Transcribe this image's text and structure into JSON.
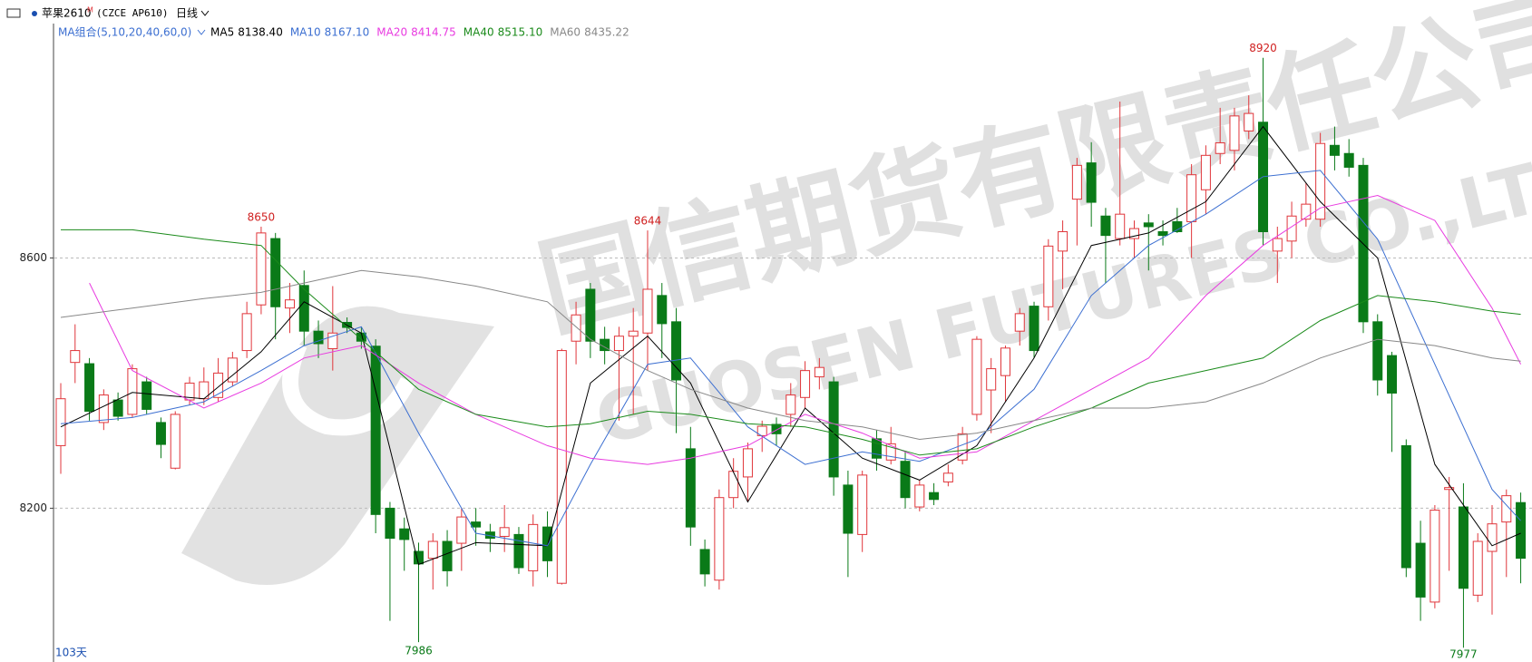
{
  "header": {
    "name": "苹果2610",
    "mark": "M",
    "code": "(CZCE AP610)",
    "period": "日线"
  },
  "legend_title": "MA组合(5,10,20,40,60,0)",
  "bar_count_label": "103天",
  "watermark": {
    "cn": "国信期货有限责任公司",
    "en": "GUOSEN FUTURES CO.,LTD."
  },
  "chart_data": {
    "type": "candlestick",
    "up_color": "#e0363b",
    "down_color": "#0a7a18",
    "ylim": [
      7960,
      8950
    ],
    "yticks": [
      8200,
      8600
    ],
    "grid": true,
    "open": [
      8300,
      8433,
      8431,
      8337,
      8373,
      8350,
      8402,
      8337,
      8264,
      8373,
      8375,
      8377,
      8402,
      8452,
      8525,
      8631,
      8520,
      8556,
      8483,
      8455,
      8497,
      8480,
      8459,
      8200,
      8167,
      8131,
      8120,
      8147,
      8144,
      8178,
      8162,
      8155,
      8158,
      8100,
      8170,
      8080,
      8467,
      8550,
      8470,
      8452,
      8475,
      8480,
      8540,
      8498,
      8295,
      8134,
      8085,
      8217,
      8250,
      8316,
      8334,
      8350,
      8377,
      8410,
      8402,
      8237,
      8158,
      8311,
      8277,
      8275,
      8202,
      8225,
      8242,
      8277,
      8350,
      8389,
      8412,
      8483,
      8523,
      8522,
      8611,
      8694,
      8752,
      8667,
      8631,
      8631,
      8656,
      8642,
      8658,
      8658,
      8709,
      8767,
      8772,
      8803,
      8817,
      8611,
      8627,
      8662,
      8662,
      8780,
      8767,
      8748,
      8498,
      8444,
      8300,
      8144,
      8050,
      8230,
      8202,
      8061,
      8131,
      8178,
      8209
    ],
    "high": [
      8400,
      8494,
      8440,
      8390,
      8385,
      8430,
      8410,
      8345,
      8355,
      8410,
      8425,
      8440,
      8450,
      8530,
      8650,
      8640,
      8560,
      8580,
      8500,
      8555,
      8505,
      8490,
      8470,
      8210,
      8185,
      8145,
      8160,
      8165,
      8200,
      8200,
      8175,
      8205,
      8170,
      8190,
      8195,
      8455,
      8530,
      8560,
      8490,
      8490,
      8520,
      8644,
      8560,
      8520,
      8330,
      8150,
      8230,
      8280,
      8305,
      8340,
      8345,
      8400,
      8435,
      8440,
      8410,
      8260,
      8260,
      8325,
      8330,
      8290,
      8245,
      8240,
      8270,
      8330,
      8475,
      8440,
      8460,
      8520,
      8530,
      8630,
      8660,
      8760,
      8785,
      8680,
      8850,
      8660,
      8670,
      8660,
      8680,
      8750,
      8780,
      8840,
      8840,
      8860,
      8920,
      8650,
      8690,
      8720,
      8800,
      8810,
      8790,
      8760,
      8510,
      8450,
      8310,
      8180,
      8205,
      8250,
      8240,
      8160,
      8205,
      8230,
      8225
    ],
    "low": [
      8255,
      8400,
      8340,
      8325,
      8340,
      8345,
      8350,
      8280,
      8262,
      8365,
      8365,
      8370,
      8395,
      8440,
      8510,
      8470,
      8480,
      8460,
      8440,
      8420,
      8480,
      8455,
      8160,
      8020,
      8100,
      7986,
      8070,
      8075,
      8100,
      8140,
      8130,
      8130,
      8095,
      8075,
      8090,
      8078,
      8430,
      8440,
      8430,
      8340,
      8350,
      8420,
      8440,
      8320,
      8140,
      8075,
      8070,
      8200,
      8210,
      8290,
      8300,
      8330,
      8360,
      8390,
      8220,
      8090,
      8130,
      8260,
      8270,
      8200,
      8195,
      8205,
      8235,
      8270,
      8340,
      8320,
      8370,
      8460,
      8440,
      8500,
      8550,
      8620,
      8650,
      8560,
      8620,
      8600,
      8580,
      8620,
      8640,
      8600,
      8670,
      8750,
      8740,
      8790,
      8620,
      8560,
      8600,
      8650,
      8650,
      8740,
      8730,
      8480,
      8380,
      8290,
      8090,
      8020,
      8040,
      8100,
      7977,
      8050,
      8030,
      8090,
      8080
    ],
    "close": [
      8375,
      8452,
      8355,
      8381,
      8347,
      8423,
      8358,
      8302,
      8350,
      8400,
      8402,
      8416,
      8440,
      8511,
      8640,
      8522,
      8533,
      8483,
      8463,
      8480,
      8489,
      8467,
      8190,
      8152,
      8150,
      8111,
      8147,
      8100,
      8186,
      8170,
      8152,
      8169,
      8105,
      8174,
      8116,
      8452,
      8509,
      8467,
      8452,
      8475,
      8483,
      8550,
      8495,
      8405,
      8170,
      8095,
      8217,
      8259,
      8295,
      8331,
      8319,
      8381,
      8420,
      8425,
      8250,
      8160,
      8253,
      8280,
      8303,
      8217,
      8237,
      8214,
      8256,
      8319,
      8470,
      8423,
      8456,
      8511,
      8452,
      8619,
      8642,
      8748,
      8689,
      8636,
      8670,
      8647,
      8650,
      8636,
      8642,
      8733,
      8764,
      8784,
      8827,
      8831,
      8642,
      8631,
      8667,
      8686,
      8783,
      8764,
      8745,
      8498,
      8405,
      8384,
      8105,
      8058,
      8197,
      8233,
      8072,
      8147,
      8175,
      8220,
      8120
    ],
    "labeled_highs": [
      14,
      41,
      84
    ],
    "labeled_lows": [
      25,
      98
    ],
    "series": [
      {
        "name": "MA5",
        "legend_value": "8138.40",
        "color": "#000000",
        "x": [
          0,
          5,
          10,
          14,
          17,
          21,
          25,
          29,
          34,
          37,
          41,
          44,
          48,
          52,
          56,
          60,
          64,
          68,
          72,
          76,
          80,
          84,
          88,
          92,
          96,
          100,
          102
        ],
        "values": [
          8330,
          8385,
          8375,
          8450,
          8530,
          8480,
          8110,
          8145,
          8140,
          8400,
          8475,
          8400,
          8210,
          8360,
          8280,
          8245,
          8300,
          8440,
          8620,
          8640,
          8690,
          8810,
          8690,
          8600,
          8270,
          8140,
          8160
        ]
      },
      {
        "name": "MA10",
        "legend_value": "8167.10",
        "color": "#3c6fd1",
        "x": [
          0,
          5,
          10,
          14,
          17,
          21,
          25,
          29,
          34,
          37,
          41,
          44,
          48,
          52,
          56,
          60,
          64,
          68,
          72,
          76,
          80,
          84,
          88,
          92,
          96,
          100,
          102
        ],
        "values": [
          8335,
          8345,
          8370,
          8420,
          8460,
          8490,
          8320,
          8160,
          8140,
          8270,
          8430,
          8440,
          8330,
          8270,
          8290,
          8275,
          8310,
          8390,
          8540,
          8620,
          8670,
          8730,
          8740,
          8630,
          8430,
          8230,
          8180
        ]
      },
      {
        "name": "MA20",
        "legend_value": "8414.75",
        "color": "#e83be0",
        "x": [
          2,
          5,
          10,
          14,
          17,
          21,
          25,
          29,
          34,
          37,
          41,
          44,
          48,
          52,
          56,
          60,
          64,
          68,
          72,
          76,
          80,
          84,
          88,
          92,
          96,
          100,
          102
        ],
        "values": [
          8560,
          8420,
          8360,
          8400,
          8440,
          8460,
          8400,
          8350,
          8300,
          8280,
          8270,
          8280,
          8300,
          8350,
          8320,
          8280,
          8290,
          8340,
          8390,
          8440,
          8540,
          8620,
          8680,
          8700,
          8660,
          8520,
          8430
        ]
      },
      {
        "name": "MA40",
        "legend_value": "8515.10",
        "color": "#1a8a1a",
        "x": [
          0,
          5,
          10,
          14,
          17,
          21,
          25,
          29,
          34,
          37,
          41,
          44,
          48,
          52,
          56,
          60,
          64,
          68,
          72,
          76,
          80,
          84,
          88,
          92,
          96,
          100,
          102
        ],
        "values": [
          8645,
          8645,
          8630,
          8620,
          8550,
          8470,
          8390,
          8350,
          8330,
          8335,
          8355,
          8350,
          8335,
          8330,
          8310,
          8285,
          8295,
          8330,
          8360,
          8400,
          8420,
          8440,
          8500,
          8540,
          8530,
          8515,
          8510
        ]
      },
      {
        "name": "MA60",
        "legend_value": "8435.22",
        "color": "#888888",
        "x": [
          0,
          5,
          10,
          14,
          17,
          21,
          25,
          29,
          34,
          37,
          41,
          44,
          48,
          52,
          56,
          60,
          64,
          68,
          72,
          76,
          80,
          84,
          88,
          92,
          96,
          100,
          102
        ],
        "values": [
          8505,
          8520,
          8535,
          8545,
          8560,
          8580,
          8570,
          8555,
          8530,
          8470,
          8420,
          8390,
          8360,
          8340,
          8330,
          8310,
          8320,
          8340,
          8360,
          8360,
          8370,
          8400,
          8440,
          8470,
          8460,
          8440,
          8435
        ]
      }
    ]
  }
}
